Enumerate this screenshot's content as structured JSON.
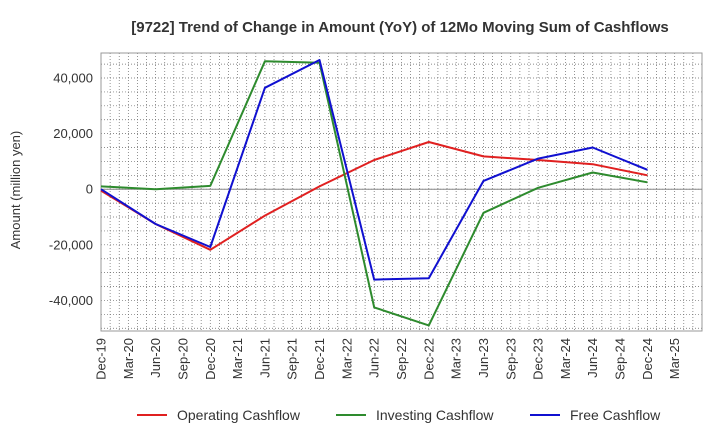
{
  "chart_data": {
    "type": "line",
    "title": "[9722]  Trend of Change in Amount (YoY) of 12Mo Moving Sum of Cashflows",
    "xlabel": "",
    "ylabel": "Amount (million yen)",
    "categories": [
      "Dec-19",
      "Mar-20",
      "Jun-20",
      "Sep-20",
      "Dec-20",
      "Mar-21",
      "Jun-21",
      "Sep-21",
      "Dec-21",
      "Mar-22",
      "Jun-22",
      "Sep-22",
      "Dec-22",
      "Mar-23",
      "Jun-23",
      "Sep-23",
      "Dec-23",
      "Mar-24",
      "Jun-24",
      "Sep-24",
      "Dec-24",
      "Mar-25"
    ],
    "yticks": [
      -40000,
      -20000,
      0,
      20000,
      40000
    ],
    "ytick_labels": [
      "-40,000",
      "-20,000",
      "0",
      "20,000",
      "40,000"
    ],
    "ylim": [
      -51000,
      49000
    ],
    "grid": true,
    "legend_position": "bottom",
    "series": [
      {
        "name": "Operating Cashflow",
        "color": "#e02020",
        "values": [
          -500,
          null,
          -12500,
          null,
          -21800,
          null,
          -9500,
          null,
          1000,
          null,
          10500,
          null,
          17000,
          null,
          11800,
          null,
          10500,
          null,
          9000,
          null,
          5000,
          null
        ]
      },
      {
        "name": "Investing Cashflow",
        "color": "#2e8b2e",
        "values": [
          1000,
          null,
          0,
          null,
          1200,
          null,
          46000,
          null,
          45500,
          null,
          -42500,
          null,
          -49000,
          null,
          -8500,
          null,
          500,
          null,
          6000,
          null,
          2500,
          null
        ]
      },
      {
        "name": "Free Cashflow",
        "color": "#1010d0",
        "values": [
          0,
          null,
          -12500,
          null,
          -20800,
          null,
          36500,
          null,
          46500,
          null,
          -32500,
          null,
          -32000,
          null,
          3000,
          null,
          11000,
          null,
          15000,
          null,
          7000,
          null
        ]
      }
    ]
  }
}
